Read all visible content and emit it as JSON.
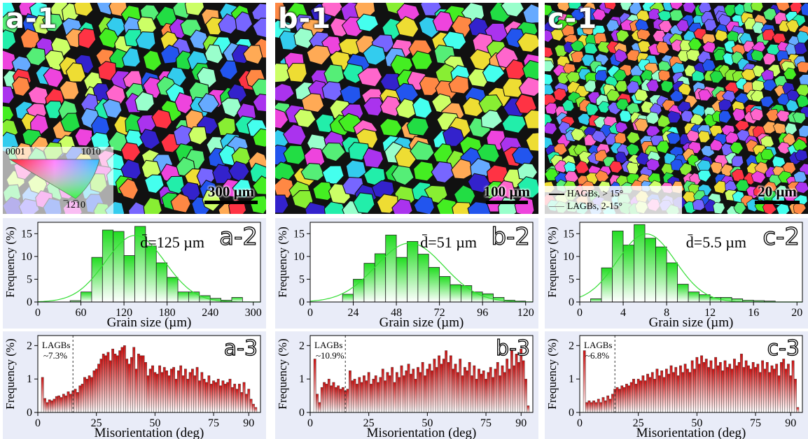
{
  "colors": {
    "panel_bg": "#e9ecf8",
    "green_top": "#22dd22",
    "green_bottom": "#ffffff",
    "red_top": "#cc1010",
    "red_bottom": "#ffffff",
    "fit_line": "#33dd33"
  },
  "ebsd_maps": [
    {
      "label": "a-1",
      "scale_text": "300 µm",
      "grain_count": 220
    },
    {
      "label": "b-1",
      "scale_text": "100 µm",
      "grain_count": 190
    },
    {
      "label": "c-1",
      "scale_text": "20 µm",
      "grain_count": 520
    }
  ],
  "ipf_legend": {
    "top_left": "0001",
    "top_right": "10̅1̅0",
    "bottom": "̅12̅10"
  },
  "gb_legend": {
    "hagb": "HAGBs, > 15°",
    "lagb": "LAGBs, 2-15°"
  },
  "chart_data": [
    {
      "type": "bar",
      "label": "a-2",
      "annotation": "d̄=125 µm",
      "xlabel": "Grain size (µm)",
      "ylabel": "Frequency (%)",
      "xlim": [
        0,
        310
      ],
      "ylim": [
        0,
        17.5
      ],
      "xticks": [
        0,
        60,
        120,
        180,
        240,
        300
      ],
      "yticks": [
        0,
        5,
        10,
        15
      ],
      "bin_width": 15,
      "x": [
        52.5,
        67.5,
        82.5,
        97.5,
        112.5,
        127.5,
        142.5,
        157.5,
        172.5,
        187.5,
        202.5,
        217.5,
        232.5,
        247.5,
        262.5,
        277.5
      ],
      "values": [
        0.3,
        2.2,
        9.8,
        15.8,
        15.5,
        10.2,
        16.6,
        12.3,
        8.6,
        5.4,
        2.2,
        2.2,
        1.4,
        0.8,
        0.4,
        1.0
      ],
      "fit_line": true
    },
    {
      "type": "bar",
      "label": "a-3",
      "annotation": "LAGBs ~7.3%",
      "xlabel": "Misorientation (deg)",
      "ylabel": "Frequency (%)",
      "xlim": [
        0,
        95
      ],
      "ylim": [
        0,
        2.3
      ],
      "xticks": [
        0,
        25,
        50,
        75,
        90
      ],
      "yticks": [
        0,
        1,
        2
      ],
      "bin_width": 1,
      "x_start": 2,
      "lagb_cutoff": 15,
      "values": [
        1.05,
        0.42,
        0.3,
        0.38,
        0.35,
        0.4,
        0.48,
        0.5,
        0.45,
        0.55,
        0.5,
        0.62,
        0.55,
        0.65,
        0.7,
        0.6,
        0.8,
        0.85,
        1.05,
        1.0,
        1.1,
        1.05,
        1.25,
        1.3,
        1.45,
        1.6,
        1.75,
        1.7,
        1.8,
        1.55,
        1.9,
        1.75,
        1.7,
        1.85,
        1.95,
        2.0,
        1.6,
        1.45,
        1.65,
        1.95,
        1.3,
        1.75,
        1.7,
        1.7,
        1.5,
        1.1,
        1.3,
        1.4,
        1.2,
        1.15,
        1.4,
        1.2,
        1.35,
        1.25,
        1.1,
        1.3,
        1.35,
        1.0,
        1.25,
        1.4,
        1.1,
        1.3,
        1.0,
        1.2,
        1.3,
        1.1,
        1.35,
        0.95,
        1.2,
        1.0,
        0.9,
        1.1,
        0.85,
        0.95,
        0.9,
        1.0,
        0.8,
        0.95,
        0.85,
        0.9,
        1.0,
        0.75,
        0.85,
        0.7,
        0.85,
        0.6,
        0.9,
        0.55,
        0.7,
        0.4,
        0.25,
        0.15
      ],
      "fit_line": false
    },
    {
      "type": "bar",
      "label": "b-2",
      "annotation": "d̄=51 µm",
      "xlabel": "Grain size (µm)",
      "ylabel": "Frequency (%)",
      "xlim": [
        0,
        124
      ],
      "ylim": [
        0,
        17.5
      ],
      "xticks": [
        0,
        24,
        48,
        72,
        96,
        120
      ],
      "yticks": [
        0,
        5,
        10,
        15
      ],
      "bin_width": 6,
      "x": [
        21,
        27,
        33,
        39,
        45,
        51,
        57,
        63,
        69,
        75,
        81,
        87,
        93,
        99,
        105,
        111,
        117
      ],
      "values": [
        1.7,
        5.0,
        8.5,
        10.6,
        14.7,
        9.8,
        13.3,
        10.5,
        7.6,
        5.6,
        3.8,
        3.6,
        2.2,
        1.8,
        1.0,
        0.4,
        0.2
      ],
      "fit_line": true
    },
    {
      "type": "bar",
      "label": "b-3",
      "annotation": "LAGBs ~10.9%",
      "xlabel": "Misorientation (deg)",
      "ylabel": "Frequency (%)",
      "xlim": [
        0,
        95
      ],
      "ylim": [
        0,
        2.3
      ],
      "xticks": [
        0,
        25,
        50,
        75,
        90
      ],
      "yticks": [
        0,
        1,
        2
      ],
      "bin_width": 1,
      "x_start": 2,
      "lagb_cutoff": 15,
      "values": [
        1.6,
        0.55,
        0.3,
        0.75,
        0.9,
        0.85,
        1.0,
        0.8,
        0.9,
        0.75,
        0.8,
        0.7,
        0.75,
        0.65,
        0.7,
        1.25,
        0.95,
        1.0,
        0.85,
        1.05,
        0.9,
        1.1,
        0.95,
        1.2,
        0.85,
        1.0,
        1.1,
        0.9,
        1.05,
        1.3,
        0.95,
        1.2,
        1.1,
        1.35,
        0.9,
        1.2,
        1.05,
        1.4,
        1.1,
        1.25,
        1.45,
        1.15,
        1.3,
        1.0,
        1.35,
        1.2,
        1.5,
        1.1,
        1.3,
        1.45,
        1.25,
        1.6,
        1.35,
        1.7,
        1.45,
        1.6,
        1.85,
        1.5,
        1.7,
        1.3,
        1.45,
        1.2,
        1.6,
        1.1,
        1.35,
        1.25,
        1.5,
        1.1,
        1.4,
        1.0,
        1.3,
        1.15,
        1.25,
        1.0,
        1.2,
        1.35,
        1.05,
        1.3,
        1.5,
        1.1,
        1.4,
        1.2,
        1.6,
        1.3,
        1.85,
        1.4,
        1.75,
        1.5,
        1.9,
        1.55,
        1.0,
        0.2
      ],
      "fit_line": false
    },
    {
      "type": "bar",
      "label": "c-2",
      "annotation": "d̄=5.5 µm",
      "xlabel": "Grain size (µm)",
      "ylabel": "Frequency (%)",
      "xlim": [
        0,
        20.5
      ],
      "ylim": [
        0,
        17.5
      ],
      "xticks": [
        0,
        4,
        8,
        12,
        16,
        20
      ],
      "yticks": [
        0,
        5,
        10,
        15
      ],
      "bin_width": 1,
      "x": [
        1.5,
        2.5,
        3.5,
        4.5,
        5.5,
        6.5,
        7.5,
        8.5,
        9.5,
        10.5,
        11.5,
        12.5,
        13.5,
        14.5,
        15.5,
        16.5,
        17.5
      ],
      "values": [
        0.7,
        7.5,
        15.6,
        12.5,
        17.0,
        14.0,
        12.1,
        8.6,
        3.9,
        2.2,
        1.6,
        1.0,
        1.0,
        0.7,
        0.4,
        0.3,
        0.2
      ],
      "fit_line": true
    },
    {
      "type": "bar",
      "label": "c-3",
      "annotation": "LAGBs ~6.8%",
      "xlabel": "Misorientation (deg)",
      "ylabel": "Frequency (%)",
      "xlim": [
        0,
        95
      ],
      "ylim": [
        0,
        2.3
      ],
      "xticks": [
        0,
        25,
        50,
        75,
        90
      ],
      "yticks": [
        0,
        1,
        2
      ],
      "bin_width": 1,
      "x_start": 2,
      "lagb_cutoff": 15,
      "values": [
        1.85,
        0.3,
        0.35,
        0.3,
        0.35,
        0.3,
        0.4,
        0.3,
        0.45,
        0.35,
        0.5,
        0.4,
        0.55,
        0.7,
        0.75,
        0.7,
        0.8,
        0.75,
        0.85,
        0.8,
        0.9,
        1.0,
        0.85,
        1.0,
        0.95,
        1.1,
        0.95,
        1.15,
        1.05,
        1.2,
        1.0,
        1.3,
        1.1,
        1.25,
        1.05,
        1.3,
        1.15,
        1.4,
        1.2,
        1.35,
        1.1,
        1.4,
        1.2,
        1.45,
        1.3,
        1.2,
        1.55,
        1.3,
        1.65,
        1.45,
        1.7,
        1.5,
        1.6,
        1.35,
        1.55,
        1.3,
        1.65,
        1.4,
        1.5,
        1.25,
        1.55,
        1.35,
        1.45,
        1.3,
        1.6,
        1.4,
        1.5,
        1.75,
        1.35,
        1.55,
        1.4,
        1.3,
        1.5,
        1.35,
        1.45,
        1.2,
        1.55,
        1.3,
        1.5,
        1.2,
        1.4,
        1.3,
        1.45,
        1.1,
        1.5,
        1.6,
        1.3,
        1.45,
        1.1,
        1.55,
        1.0,
        0.15
      ],
      "fit_line": false
    }
  ]
}
